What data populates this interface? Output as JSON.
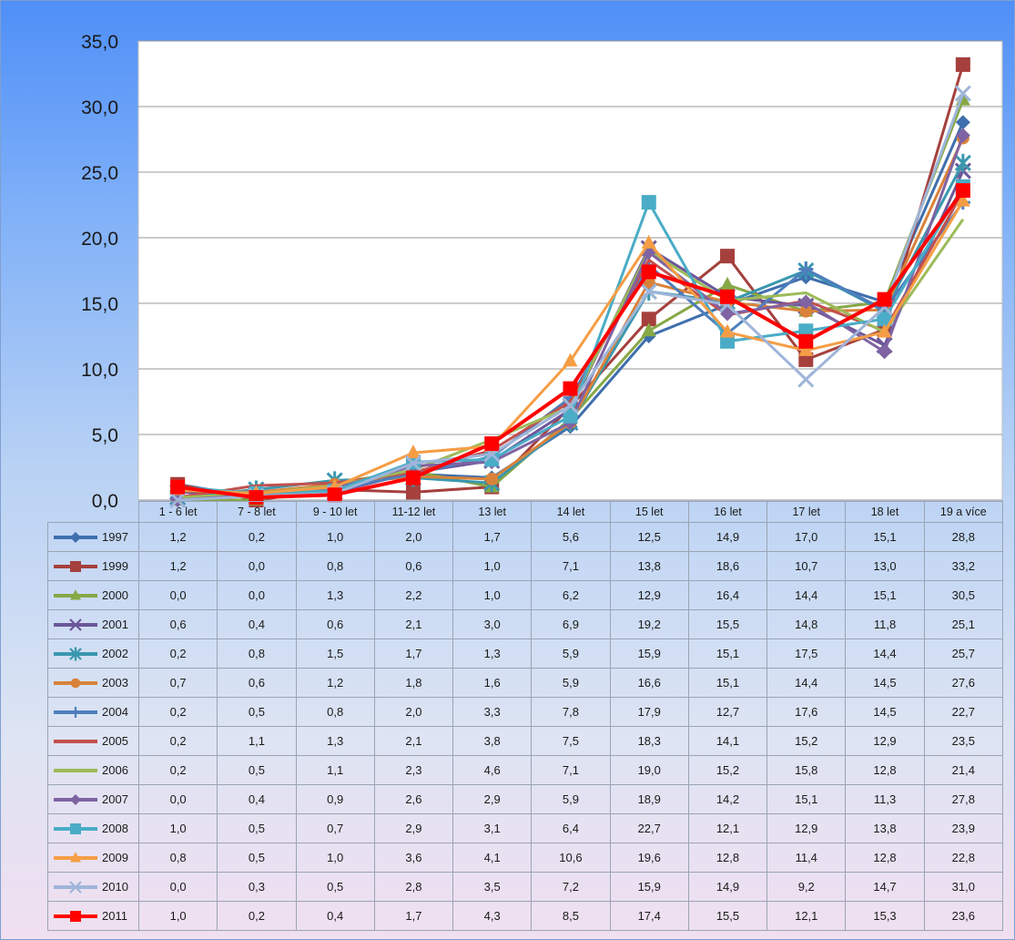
{
  "chart_data": {
    "type": "line",
    "title": "",
    "xlabel": "",
    "ylabel": "",
    "ylim": [
      0,
      35
    ],
    "yticks": [
      "0,0",
      "5,0",
      "10,0",
      "15,0",
      "20,0",
      "25,0",
      "30,0",
      "35,0"
    ],
    "grid": "horizontal",
    "legend": "data table below chart",
    "categories": [
      "1 - 6 let",
      "7 - 8 let",
      "9 - 10 let",
      "11-12 let",
      "13 let",
      "14 let",
      "15 let",
      "16 let",
      "17 let",
      "18 let",
      "19 a více"
    ],
    "series": [
      {
        "name": "1997",
        "color": "#3f6fad",
        "marker": "diamond",
        "values": [
          "1,2",
          "0,2",
          "1,0",
          "2,0",
          "1,7",
          "5,6",
          "12,5",
          "14,9",
          "17,0",
          "15,1",
          "28,8"
        ]
      },
      {
        "name": "1999",
        "color": "#a5403d",
        "marker": "square",
        "values": [
          "1,2",
          "0,0",
          "0,8",
          "0,6",
          "1,0",
          "7,1",
          "13,8",
          "18,6",
          "10,7",
          "13,0",
          "33,2"
        ]
      },
      {
        "name": "2000",
        "color": "#86a845",
        "marker": "triangle",
        "values": [
          "0,0",
          "0,0",
          "1,3",
          "2,2",
          "1,0",
          "6,2",
          "12,9",
          "16,4",
          "14,4",
          "15,1",
          "30,5"
        ]
      },
      {
        "name": "2001",
        "color": "#6c569a",
        "marker": "x",
        "values": [
          "0,6",
          "0,4",
          "0,6",
          "2,1",
          "3,0",
          "6,9",
          "19,2",
          "15,5",
          "14,8",
          "11,8",
          "25,1"
        ]
      },
      {
        "name": "2002",
        "color": "#3a97ae",
        "marker": "star",
        "values": [
          "0,2",
          "0,8",
          "1,5",
          "1,7",
          "1,3",
          "5,9",
          "15,9",
          "15,1",
          "17,5",
          "14,4",
          "25,7"
        ]
      },
      {
        "name": "2003",
        "color": "#d9823a",
        "marker": "circle",
        "values": [
          "0,7",
          "0,6",
          "1,2",
          "1,8",
          "1,6",
          "5,9",
          "16,6",
          "15,1",
          "14,4",
          "14,5",
          "27,6"
        ]
      },
      {
        "name": "2004",
        "color": "#4e7ebd",
        "marker": "plus",
        "values": [
          "0,2",
          "0,5",
          "0,8",
          "2,0",
          "3,3",
          "7,8",
          "17,9",
          "12,7",
          "17,6",
          "14,5",
          "22,7"
        ]
      },
      {
        "name": "2005",
        "color": "#c2504e",
        "marker": "none",
        "values": [
          "0,2",
          "1,1",
          "1,3",
          "2,1",
          "3,8",
          "7,5",
          "18,3",
          "14,1",
          "15,2",
          "12,9",
          "23,5"
        ]
      },
      {
        "name": "2006",
        "color": "#9dbb59",
        "marker": "none",
        "values": [
          "0,2",
          "0,5",
          "1,1",
          "2,3",
          "4,6",
          "7,1",
          "19,0",
          "15,2",
          "15,8",
          "12,8",
          "21,4"
        ]
      },
      {
        "name": "2007",
        "color": "#7f63a2",
        "marker": "diamond",
        "values": [
          "0,0",
          "0,4",
          "0,9",
          "2,6",
          "2,9",
          "5,9",
          "18,9",
          "14,2",
          "15,1",
          "11,3",
          "27,8"
        ]
      },
      {
        "name": "2008",
        "color": "#4aacc6",
        "marker": "square",
        "values": [
          "1,0",
          "0,5",
          "0,7",
          "2,9",
          "3,1",
          "6,4",
          "22,7",
          "12,1",
          "12,9",
          "13,8",
          "23,9"
        ]
      },
      {
        "name": "2009",
        "color": "#f59d45",
        "marker": "triangle",
        "values": [
          "0,8",
          "0,5",
          "1,0",
          "3,6",
          "4,1",
          "10,6",
          "19,6",
          "12,8",
          "11,4",
          "12,8",
          "22,8"
        ]
      },
      {
        "name": "2010",
        "color": "#9fb5d9",
        "marker": "x",
        "values": [
          "0,0",
          "0,3",
          "0,5",
          "2,8",
          "3,5",
          "7,2",
          "15,9",
          "14,9",
          "9,2",
          "14,7",
          "31,0"
        ]
      },
      {
        "name": "2011",
        "color": "#ff0000",
        "marker": "square",
        "values": [
          "1,0",
          "0,2",
          "0,4",
          "1,7",
          "4,3",
          "8,5",
          "17,4",
          "15,5",
          "12,1",
          "15,3",
          "23,6"
        ]
      }
    ]
  }
}
